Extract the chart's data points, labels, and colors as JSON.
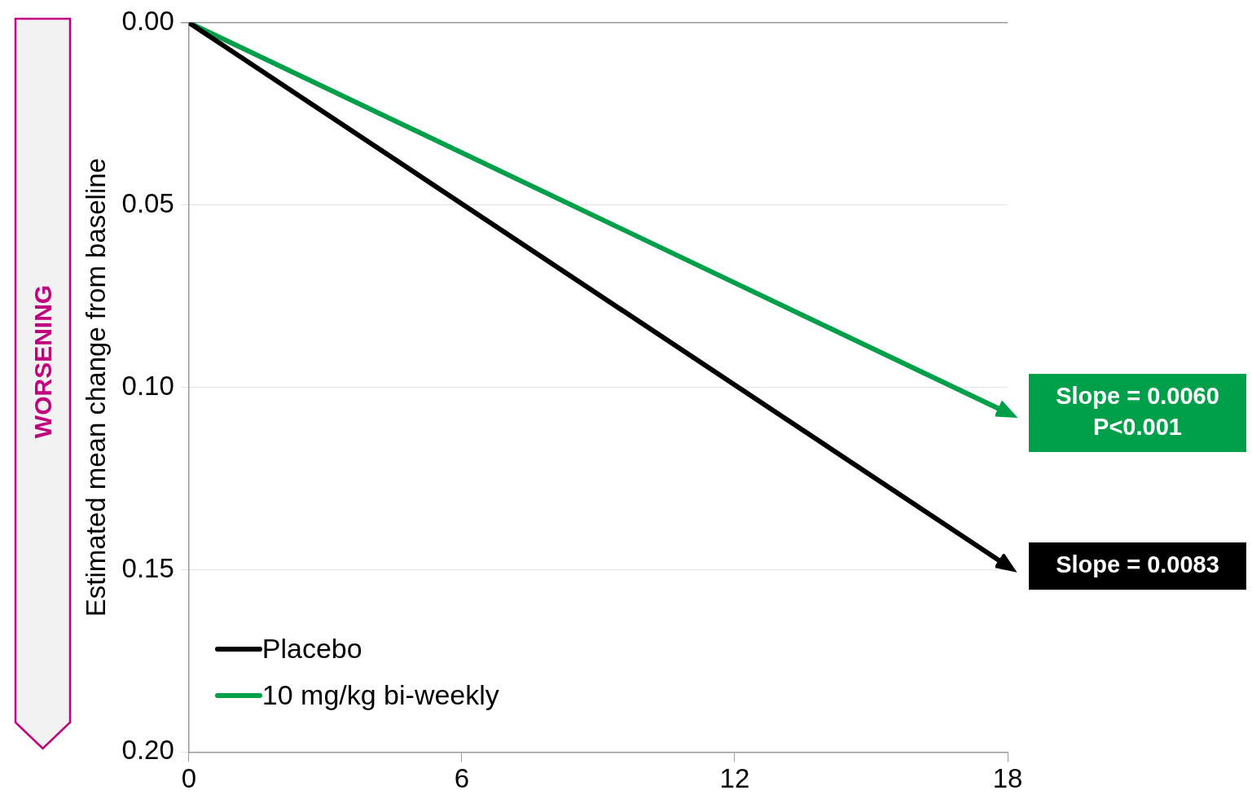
{
  "chart_data": {
    "type": "line",
    "ylabel": "Estimated mean change from baseline",
    "x": [
      0,
      18
    ],
    "xlim": [
      0,
      18
    ],
    "xticks": [
      0,
      6,
      12,
      18
    ],
    "ylim": [
      0.2,
      0
    ],
    "yticks": [
      {
        "value": 0,
        "label": "0.00"
      },
      {
        "value": 0.05,
        "label": "0.05"
      },
      {
        "value": 0.1,
        "label": "0.10"
      },
      {
        "value": 0.15,
        "label": "0.15"
      },
      {
        "value": 0.2,
        "label": "0.20"
      }
    ],
    "series": [
      {
        "name": "Placebo",
        "color": "#000000",
        "values": [
          0,
          0.149
        ]
      },
      {
        "name": "10 mg/kg bi-weekly",
        "color": "#00a04a",
        "values": [
          0,
          0.107
        ]
      }
    ],
    "annotations": [
      "WORSENING",
      {
        "text": "Slope = 0.0060\nP<0.001",
        "x": 18,
        "y": 0.107
      },
      {
        "text": "Slope = 0.0083",
        "x": 18,
        "y": 0.149
      }
    ],
    "grid": "y",
    "legend": "bottom left",
    "line_style": "solid"
  }
}
